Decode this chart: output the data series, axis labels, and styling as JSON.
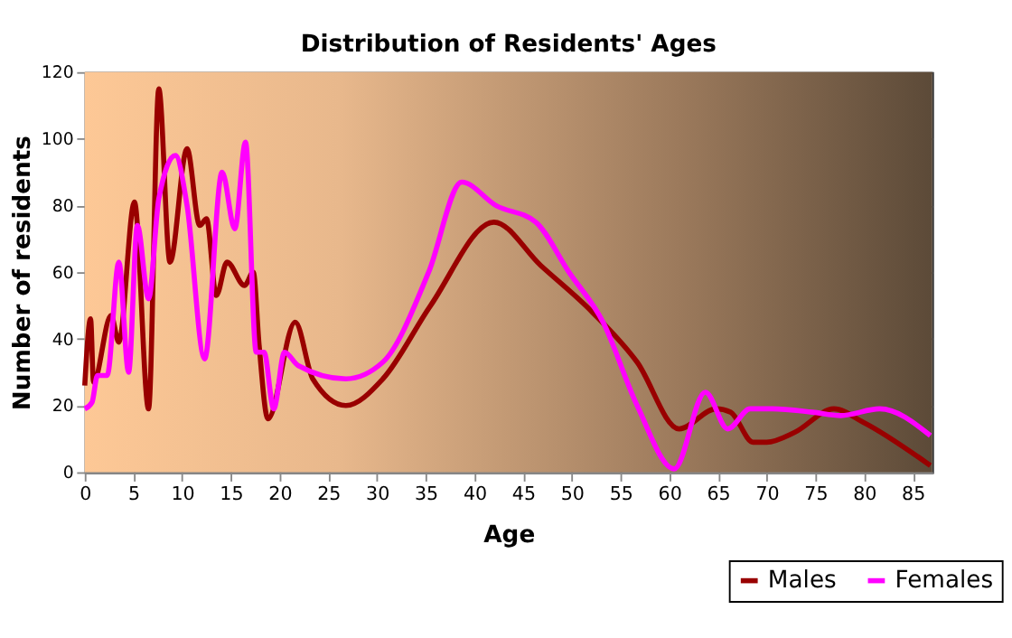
{
  "chart_data": {
    "type": "line",
    "title": "Distribution of Residents' Ages",
    "xlabel": "Age",
    "ylabel": "Number of residents",
    "xlim": [
      0,
      87
    ],
    "xticks": [
      0,
      5,
      10,
      15,
      20,
      25,
      30,
      35,
      40,
      45,
      50,
      55,
      60,
      65,
      70,
      75,
      80,
      85
    ],
    "ylim": [
      0,
      120
    ],
    "yticks": [
      0,
      20,
      40,
      60,
      80,
      100,
      120
    ],
    "grid": true,
    "legend": "bottom right",
    "series": [
      {
        "name": "Males",
        "color": "#990000",
        "x": [
          0,
          0.6,
          0.9,
          2.7,
          3.5,
          5.1,
          6.55,
          7.6,
          8.75,
          10.5,
          11.8,
          12.5,
          13.5,
          14.6,
          16.4,
          17.3,
          17.9,
          18.8,
          21.6,
          23.4,
          26.8,
          30.6,
          35.5,
          42,
          46.8,
          52.1,
          56.7,
          61,
          64.8,
          66.3,
          68.6,
          70,
          72.9,
          76.9,
          79.9,
          86.8
        ],
        "values": [
          26,
          46,
          27,
          47,
          39,
          81,
          19,
          115,
          63,
          97,
          74,
          76,
          53,
          63,
          56,
          60,
          38,
          16,
          45,
          28,
          20,
          28,
          50,
          75,
          62,
          48,
          33,
          13,
          19,
          18,
          9,
          9,
          12,
          19,
          15,
          2
        ]
      },
      {
        "name": "Females",
        "color": "#ff00ff",
        "x": [
          0,
          0.75,
          1.3,
          2.3,
          3.5,
          4.5,
          5.4,
          6.55,
          7.6,
          9.3,
          10.5,
          12.3,
          14.1,
          15.4,
          16.5,
          17.6,
          18.4,
          19.4,
          20.5,
          21.9,
          26.8,
          30.6,
          35.3,
          38.7,
          42.2,
          46.3,
          49.7,
          53.2,
          56.7,
          60.5,
          63.7,
          66,
          68.3,
          70.6,
          74.7,
          77.6,
          81.6,
          86.8
        ],
        "values": [
          19,
          21,
          29,
          29,
          63,
          30,
          74,
          52,
          82,
          95,
          80,
          34,
          90,
          73,
          99,
          36,
          36,
          19,
          36,
          32,
          28,
          33,
          60,
          87,
          80,
          75,
          60,
          45,
          20,
          1,
          24,
          13,
          19,
          19,
          18,
          17,
          19,
          11
        ]
      }
    ]
  }
}
